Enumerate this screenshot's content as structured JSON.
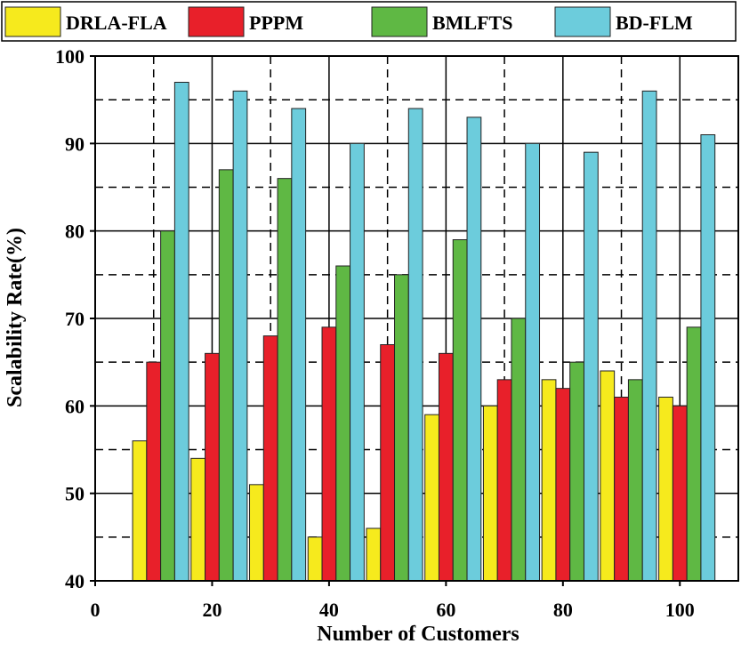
{
  "chart_data": {
    "type": "bar",
    "title": "",
    "xlabel": "Number of Customers",
    "ylabel": "Scalability Rate(%)",
    "xlim": [
      0,
      110
    ],
    "ylim": [
      40,
      100
    ],
    "xticks": [
      "0",
      "20",
      "40",
      "60",
      "80",
      "100"
    ],
    "yticks": [
      "40",
      "50",
      "60",
      "70",
      "80",
      "90",
      "100"
    ],
    "x": [
      10,
      20,
      30,
      40,
      50,
      60,
      70,
      80,
      90,
      100
    ],
    "grid": true,
    "legend": "top",
    "series": [
      {
        "name": "DRLA-FLA",
        "color": "#f6ea1d",
        "values": [
          56,
          54,
          51,
          45,
          46,
          59,
          60,
          63,
          64,
          61
        ]
      },
      {
        "name": "PPPM",
        "color": "#e8202a",
        "values": [
          65,
          66,
          68,
          69,
          67,
          66,
          63,
          62,
          61,
          60
        ]
      },
      {
        "name": "BMLFTS",
        "color": "#5fb844",
        "values": [
          80,
          87,
          86,
          76,
          75,
          79,
          70,
          65,
          63,
          69
        ]
      },
      {
        "name": "BD-FLM",
        "color": "#6cccdc",
        "values": [
          97,
          96,
          94,
          90,
          94,
          93,
          90,
          89,
          96,
          91
        ]
      }
    ]
  }
}
